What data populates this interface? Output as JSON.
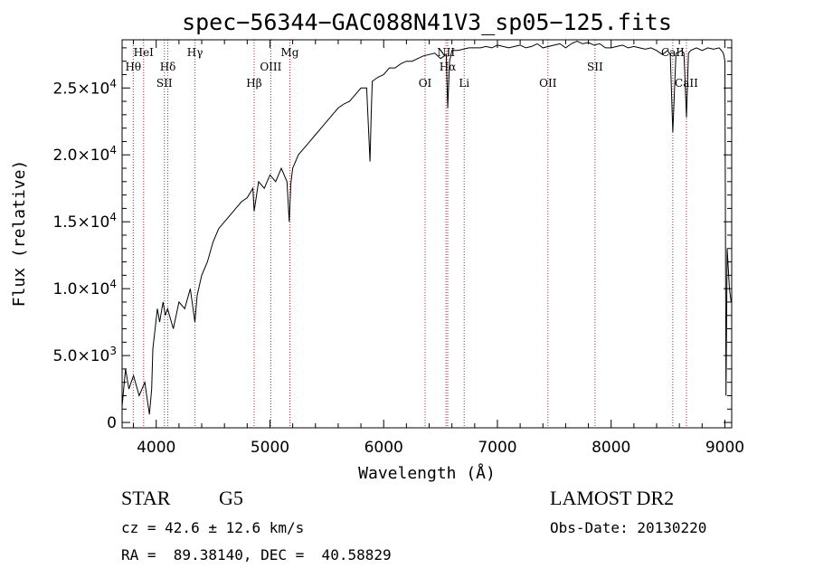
{
  "chart_data": {
    "type": "line",
    "title": "spec−56344−GAC088N41V3_sp05−125.fits",
    "xlabel": "Wavelength (Å)",
    "ylabel": "Flux (relative)",
    "xlim": [
      3700,
      9060
    ],
    "ylim": [
      -400,
      28600
    ],
    "x_ticks": [
      4000,
      5000,
      6000,
      7000,
      8000,
      9000
    ],
    "y_ticks": [
      {
        "value": 0,
        "label": "0"
      },
      {
        "value": 5000,
        "label": "5.0×10",
        "exp": "3"
      },
      {
        "value": 10000,
        "label": "1.0×10",
        "exp": "4"
      },
      {
        "value": 15000,
        "label": "1.5×10",
        "exp": "4"
      },
      {
        "value": 20000,
        "label": "2.0×10",
        "exp": "4"
      },
      {
        "value": 25000,
        "label": "2.5×10",
        "exp": "4"
      }
    ],
    "grid": false,
    "series": [
      {
        "color": "#000000",
        "x": [
          3700,
          3730,
          3760,
          3800,
          3850,
          3900,
          3940,
          3960,
          3970,
          3990,
          4010,
          4030,
          4060,
          4080,
          4100,
          4150,
          4200,
          4250,
          4300,
          4340,
          4360,
          4400,
          4450,
          4500,
          4550,
          4600,
          4650,
          4700,
          4750,
          4800,
          4850,
          4861,
          4900,
          4950,
          5000,
          5050,
          5100,
          5150,
          5170,
          5183,
          5200,
          5250,
          5300,
          5350,
          5400,
          5450,
          5500,
          5550,
          5600,
          5650,
          5700,
          5750,
          5800,
          5850,
          5880,
          5890,
          5900,
          5950,
          6000,
          6050,
          6100,
          6150,
          6200,
          6250,
          6300,
          6350,
          6400,
          6450,
          6500,
          6550,
          6563,
          6580,
          6600,
          6650,
          6700,
          6750,
          6800,
          6850,
          6900,
          6950,
          7000,
          7050,
          7100,
          7150,
          7200,
          7250,
          7300,
          7350,
          7400,
          7450,
          7500,
          7550,
          7600,
          7650,
          7700,
          7750,
          7800,
          7850,
          7900,
          7950,
          8000,
          8050,
          8100,
          8150,
          8200,
          8250,
          8300,
          8350,
          8400,
          8450,
          8498,
          8520,
          8542,
          8570,
          8600,
          8620,
          8640,
          8662,
          8680,
          8700,
          8750,
          8800,
          8850,
          8900,
          8950,
          8980,
          8990,
          9000,
          9010,
          9020,
          9040,
          9055
        ],
        "y": [
          1200,
          4000,
          2500,
          3500,
          2000,
          3000,
          600,
          2500,
          5500,
          7000,
          8500,
          7500,
          9000,
          8000,
          8500,
          7000,
          9000,
          8500,
          10000,
          7500,
          9500,
          11000,
          12000,
          13500,
          14500,
          15000,
          15500,
          16000,
          16500,
          16800,
          17500,
          15800,
          18000,
          17500,
          18500,
          18000,
          19000,
          18000,
          15000,
          17800,
          19000,
          20000,
          20500,
          21000,
          21500,
          22000,
          22500,
          23000,
          23500,
          23800,
          24000,
          24500,
          25000,
          25000,
          19500,
          23000,
          25500,
          25800,
          26000,
          26500,
          26500,
          26800,
          27000,
          27000,
          27200,
          27400,
          27500,
          27600,
          27200,
          27500,
          23500,
          27000,
          27800,
          27800,
          27900,
          28000,
          28000,
          28000,
          28100,
          28000,
          28200,
          28100,
          28000,
          28100,
          28200,
          28000,
          28100,
          28300,
          28000,
          28100,
          28200,
          28300,
          28000,
          28300,
          28500,
          28300,
          28400,
          28200,
          28300,
          28000,
          28000,
          28100,
          28200,
          28000,
          28100,
          28000,
          27900,
          28000,
          27800,
          27500,
          27800,
          27500,
          21700,
          27600,
          27700,
          27800,
          27600,
          22800,
          27600,
          27800,
          28000,
          27800,
          28000,
          27900,
          28000,
          27700,
          27500,
          27000,
          2000,
          13000,
          10000,
          9000
        ]
      }
    ],
    "annotations": [
      {
        "label": "Hθ",
        "x": 3798,
        "row": 2
      },
      {
        "label": "HeI",
        "x": 3889,
        "row": 1
      },
      {
        "label": "SII",
        "x": 4072,
        "row": 3
      },
      {
        "label": "Hδ",
        "x": 4102,
        "row": 2
      },
      {
        "label": "Hγ",
        "x": 4341,
        "row": 1
      },
      {
        "label": "Hβ",
        "x": 4861,
        "row": 3
      },
      {
        "label": "OIII",
        "x": 5007,
        "row": 2
      },
      {
        "label": "Mg",
        "x": 5175,
        "row": 1
      },
      {
        "label": "OI",
        "x": 6364,
        "row": 3
      },
      {
        "label": "NII",
        "x": 6548,
        "row": 1
      },
      {
        "label": "Hα",
        "x": 6563,
        "row": 2
      },
      {
        "label": "Li",
        "x": 6708,
        "row": 3
      },
      {
        "label": "OII",
        "x": 7444,
        "row": 3
      },
      {
        "label": "SII",
        "x": 7858,
        "row": 2
      },
      {
        "label": "CaII",
        "x": 8542,
        "row": 1
      },
      {
        "label": "CaII",
        "x": 8662,
        "row": 3
      }
    ]
  },
  "info": {
    "object_class": "STAR",
    "subclass": "G5",
    "survey": "LAMOST DR2",
    "cz": "cz = 42.6 ± 12.6 km/s",
    "obs_date": "Obs-Date: 20130220",
    "coords": "RA =  89.38140, DEC =  40.58829"
  }
}
